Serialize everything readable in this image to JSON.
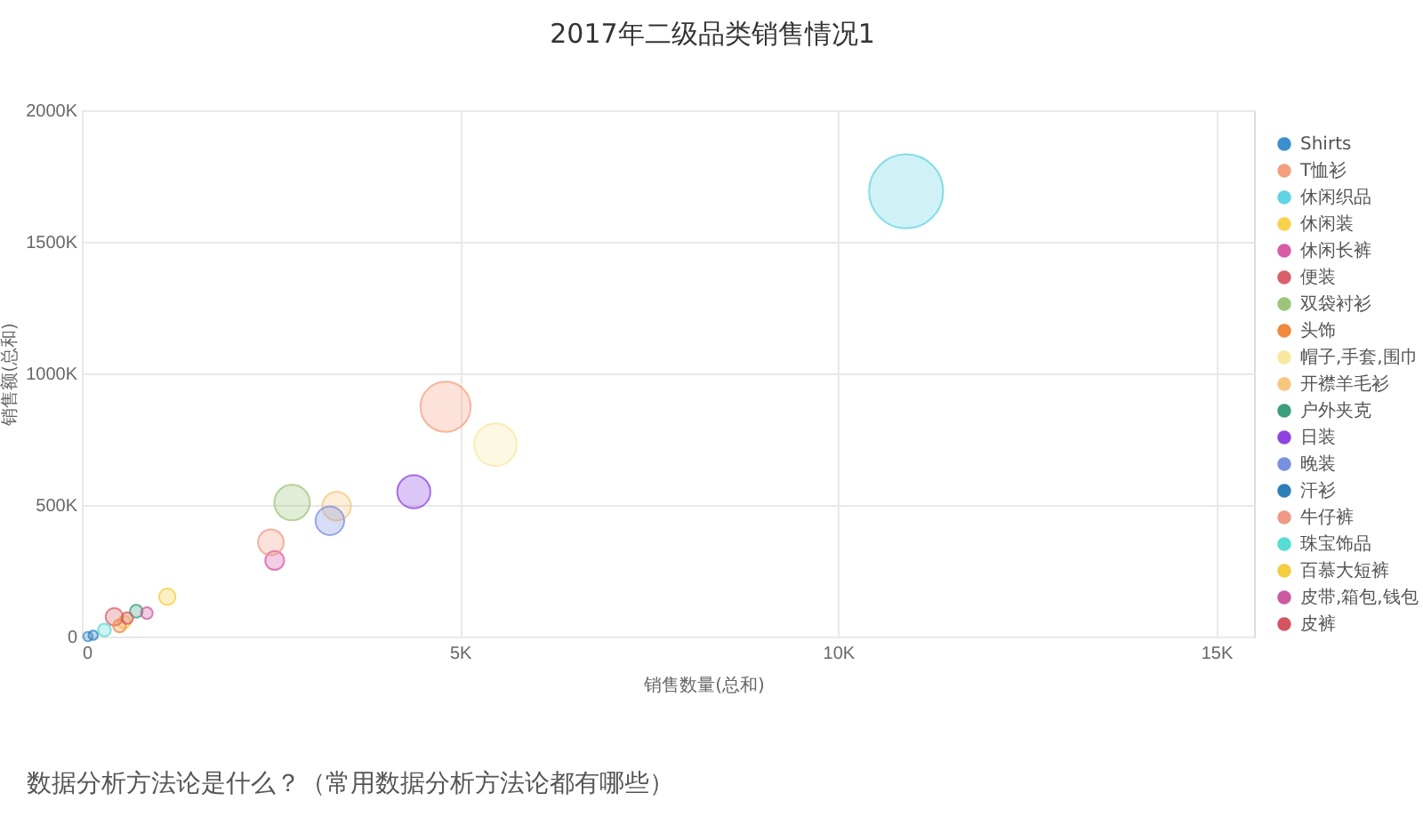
{
  "chart_data": {
    "type": "bubble",
    "title": "2017年二级品类销售情况1",
    "xlabel": "销售数量(总和)",
    "ylabel": "销售额(总和)",
    "xlim": [
      0,
      15500
    ],
    "ylim": [
      0,
      2000000
    ],
    "xticks": [
      0,
      {
        "value": 5000,
        "label": "5K"
      },
      {
        "value": 10000,
        "label": "10K"
      },
      {
        "value": 15000,
        "label": "15K"
      }
    ],
    "yticks": [
      0,
      {
        "value": 500000,
        "label": "500K"
      },
      {
        "value": 1000000,
        "label": "1000K"
      },
      {
        "value": 1500000,
        "label": "1500K"
      },
      {
        "value": 2000000,
        "label": "2000K"
      }
    ],
    "grid": true,
    "legend": "right",
    "annotations": [
      "数据分析方法论是什么？（常用数据分析方法论都有哪些）"
    ],
    "series": [
      {
        "name": "Shirts",
        "color": "#3b8fd0",
        "x": [
          80
        ],
        "values": [
          0
        ],
        "sizes": [
          0.016
        ]
      },
      {
        "name": "T恤衫",
        "color": "#f4a07f",
        "x": [
          4810
        ],
        "values": [
          873000
        ],
        "sizes": [
          0.46
        ]
      },
      {
        "name": "休闲织品",
        "color": "#62d3e3",
        "x": [
          10900
        ],
        "values": [
          1692000
        ],
        "sizes": [
          1
        ]
      },
      {
        "name": "休闲装",
        "color": "#f8d24e",
        "x": [
          560
        ],
        "values": [
          55000
        ],
        "sizes": [
          0.03
        ]
      },
      {
        "name": "休闲长裤",
        "color": "#d85aa8",
        "x": [
          2550
        ],
        "values": [
          289000
        ],
        "sizes": [
          0.065
        ]
      },
      {
        "name": "便装",
        "color": "#d9606a",
        "x": [
          430
        ],
        "values": [
          75000
        ],
        "sizes": [
          0.055
        ]
      },
      {
        "name": "双袋衬衫",
        "color": "#9cc57a",
        "x": [
          2780
        ],
        "values": [
          509000
        ],
        "sizes": [
          0.23
        ]
      },
      {
        "name": "头饰",
        "color": "#f0883e",
        "x": [
          500
        ],
        "values": [
          40000
        ],
        "sizes": [
          0.03
        ]
      },
      {
        "name": "帽子,手套,围巾",
        "color": "#f8e7a0",
        "x": [
          5470
        ],
        "values": [
          729000
        ],
        "sizes": [
          0.33
        ]
      },
      {
        "name": "开襟羊毛衫",
        "color": "#f5c77e",
        "x": [
          3370
        ],
        "values": [
          495000
        ],
        "sizes": [
          0.15
        ]
      },
      {
        "name": "户外夹克",
        "color": "#3a9e7e",
        "x": [
          720
        ],
        "values": [
          96000
        ],
        "sizes": [
          0.03
        ]
      },
      {
        "name": "日装",
        "color": "#8e44e0",
        "x": [
          4390
        ],
        "values": [
          550000
        ],
        "sizes": [
          0.2
        ]
      },
      {
        "name": "晚装",
        "color": "#7b8fe0",
        "x": [
          3280
        ],
        "values": [
          440000
        ],
        "sizes": [
          0.15
        ]
      },
      {
        "name": "汗衫",
        "color": "#2c7fb8",
        "x": [
          150
        ],
        "values": [
          5000
        ],
        "sizes": [
          0.016
        ]
      },
      {
        "name": "牛仔裤",
        "color": "#ef9a86",
        "x": [
          2500
        ],
        "values": [
          358000
        ],
        "sizes": [
          0.12
        ]
      },
      {
        "name": "珠宝饰品",
        "color": "#56dcd0",
        "x": [
          300
        ],
        "values": [
          25000
        ],
        "sizes": [
          0.03
        ]
      },
      {
        "name": "百慕大短裤",
        "color": "#f6cd40",
        "x": [
          1130
        ],
        "values": [
          151000
        ],
        "sizes": [
          0.05
        ]
      },
      {
        "name": "皮带,箱包,钱包",
        "color": "#cc5aa0",
        "x": [
          860
        ],
        "values": [
          89000
        ],
        "sizes": [
          0.025
        ]
      },
      {
        "name": "皮裤",
        "color": "#d45560",
        "x": [
          600
        ],
        "values": [
          70000
        ],
        "sizes": [
          0.025
        ]
      }
    ]
  }
}
